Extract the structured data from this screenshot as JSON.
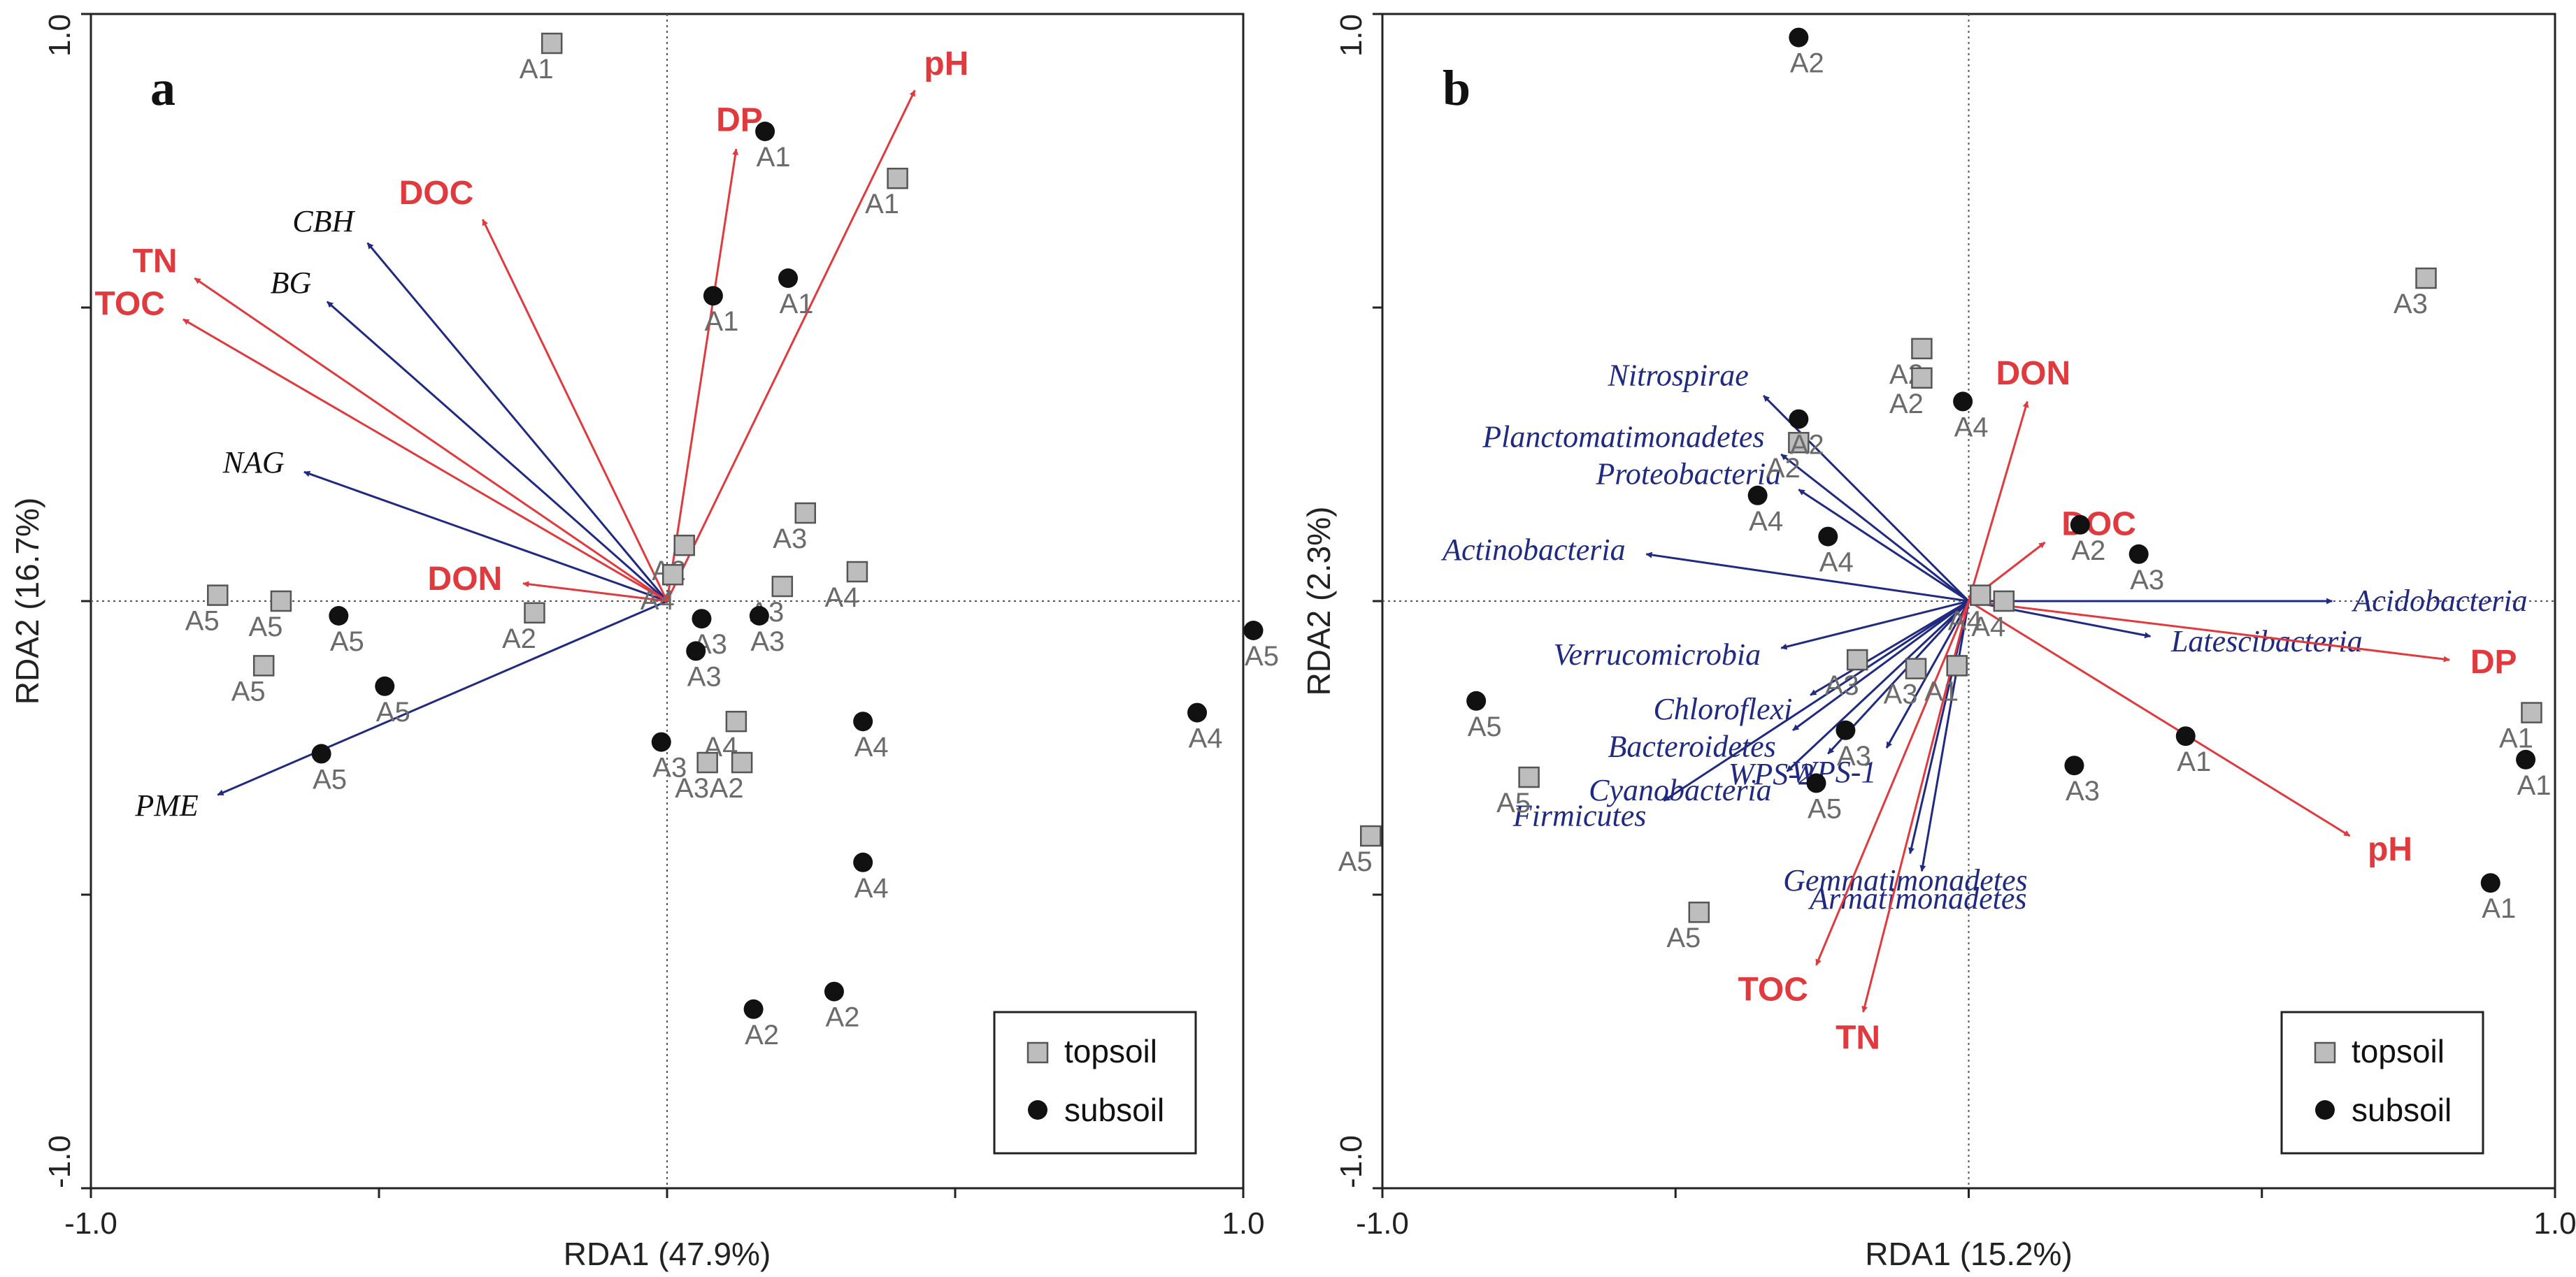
{
  "colors": {
    "env": "#e03a3e",
    "resp_a": "#1f2a80",
    "resp_b": "#1f2a80",
    "topsoil_fill": "#bdbdbd",
    "subsoil_fill": "#111111"
  },
  "chart_data": [
    {
      "type": "scatter",
      "panel": "a",
      "xlabel": "RDA1 (47.9%)",
      "ylabel": "RDA2 (16.7%)",
      "xlim": [
        -1.0,
        1.0
      ],
      "ylim": [
        -1.0,
        1.0
      ],
      "x_tick_labels": [
        "-1.0",
        "1.0"
      ],
      "y_tick_labels": [
        "1.0",
        "-1.0"
      ],
      "legend": {
        "position": "bottom-right",
        "items": [
          "topsoil",
          "subsoil"
        ]
      },
      "env_arrows": [
        {
          "label": "pH",
          "x": 0.43,
          "y": 0.87
        },
        {
          "label": "DP",
          "x": 0.12,
          "y": 0.77
        },
        {
          "label": "DOC",
          "x": -0.32,
          "y": 0.65
        },
        {
          "label": "TN",
          "x": -0.82,
          "y": 0.55
        },
        {
          "label": "TOC",
          "x": -0.84,
          "y": 0.48
        },
        {
          "label": "DON",
          "x": -0.25,
          "y": 0.03
        }
      ],
      "response_arrows": [
        {
          "label": "CBH",
          "x": -0.52,
          "y": 0.61
        },
        {
          "label": "BG",
          "x": -0.59,
          "y": 0.51
        },
        {
          "label": "NAG",
          "x": -0.63,
          "y": 0.22
        },
        {
          "label": "PME",
          "x": -0.78,
          "y": -0.33
        }
      ],
      "topsoil": [
        {
          "label": "A1",
          "x": -0.2,
          "y": 0.95
        },
        {
          "label": "A1",
          "x": 0.4,
          "y": 0.72
        },
        {
          "label": "A3",
          "x": 0.24,
          "y": 0.15
        },
        {
          "label": "A4",
          "x": 0.33,
          "y": 0.05
        },
        {
          "label": "A3",
          "x": 0.2,
          "y": 0.025
        },
        {
          "label": "A2",
          "x": 0.03,
          "y": 0.095
        },
        {
          "label": "A4",
          "x": 0.01,
          "y": 0.045
        },
        {
          "label": "A2",
          "x": -0.23,
          "y": -0.02
        },
        {
          "label": "A5",
          "x": -0.78,
          "y": 0.01
        },
        {
          "label": "A5",
          "x": -0.67,
          "y": 0.0
        },
        {
          "label": "A5",
          "x": -0.7,
          "y": -0.11
        },
        {
          "label": "A4",
          "x": 0.12,
          "y": -0.205
        },
        {
          "label": "A3",
          "x": 0.07,
          "y": -0.275
        },
        {
          "label": "A2",
          "x": 0.13,
          "y": -0.275
        }
      ],
      "subsoil": [
        {
          "label": "A1",
          "x": 0.17,
          "y": 0.8
        },
        {
          "label": "A1",
          "x": 0.21,
          "y": 0.55
        },
        {
          "label": "A1",
          "x": 0.08,
          "y": 0.52
        },
        {
          "label": "A5",
          "x": -0.57,
          "y": -0.025
        },
        {
          "label": "A5",
          "x": -0.49,
          "y": -0.145
        },
        {
          "label": "A5",
          "x": -0.6,
          "y": -0.26
        },
        {
          "label": "A3",
          "x": 0.06,
          "y": -0.03
        },
        {
          "label": "A3",
          "x": 0.16,
          "y": -0.025
        },
        {
          "label": "A3",
          "x": 0.05,
          "y": -0.085
        },
        {
          "label": "A3",
          "x": -0.01,
          "y": -0.24
        },
        {
          "label": "A4",
          "x": 0.34,
          "y": -0.205
        },
        {
          "label": "A4",
          "x": 0.92,
          "y": -0.19
        },
        {
          "label": "A4",
          "x": 0.34,
          "y": -0.445
        },
        {
          "label": "A2",
          "x": 0.15,
          "y": -0.695
        },
        {
          "label": "A2",
          "x": 0.29,
          "y": -0.665
        }
      ]
    },
    {
      "type": "scatter",
      "panel": "b",
      "xlabel": "RDA1 (15.2%)",
      "ylabel": "RDA2 (2.3%)",
      "xlim": [
        -1.0,
        1.0
      ],
      "ylim": [
        -1.0,
        1.0
      ],
      "x_tick_labels": [
        "-1.0",
        "1.0"
      ],
      "y_tick_labels": [
        "1.0",
        "-1.0"
      ],
      "legend": {
        "position": "bottom-right",
        "items": [
          "topsoil",
          "subsoil"
        ]
      },
      "env_arrows": [
        {
          "label": "DON",
          "x": 0.1,
          "y": 0.34
        },
        {
          "label": "DOC",
          "x": 0.13,
          "y": 0.1
        },
        {
          "label": "DP",
          "x": 0.82,
          "y": -0.1
        },
        {
          "label": "pH",
          "x": 0.65,
          "y": -0.4
        },
        {
          "label": "TOC",
          "x": -0.26,
          "y": -0.62
        },
        {
          "label": "TN",
          "x": -0.18,
          "y": -0.7
        }
      ],
      "response_arrows": [
        {
          "label": "Nitrospirae",
          "x": -0.35,
          "y": 0.35
        },
        {
          "label": "Planctomatimonadetes",
          "x": -0.32,
          "y": 0.25
        },
        {
          "label": "Proteobacteria",
          "x": -0.29,
          "y": 0.19
        },
        {
          "label": "Actinobacteria",
          "x": -0.55,
          "y": 0.08
        },
        {
          "label": "Acidobacteria",
          "x": 0.62,
          "y": 0.0
        },
        {
          "label": "Latescibacteria",
          "x": 0.31,
          "y": -0.06
        },
        {
          "label": "Verrucomicrobia",
          "x": -0.32,
          "y": -0.08
        },
        {
          "label": "Chloroflexi",
          "x": -0.27,
          "y": -0.16
        },
        {
          "label": "Bacteroidetes",
          "x": -0.3,
          "y": -0.22
        },
        {
          "label": "WPS-2",
          "x": -0.24,
          "y": -0.26
        },
        {
          "label": "WPS-1",
          "x": -0.14,
          "y": -0.25
        },
        {
          "label": "Cyanobacteria",
          "x": -0.31,
          "y": -0.29
        },
        {
          "label": "Firmicutes",
          "x": -0.52,
          "y": -0.34
        },
        {
          "label": "Gemmatimonadetes",
          "x": -0.1,
          "y": -0.43
        },
        {
          "label": "Armatimonadetes",
          "x": -0.08,
          "y": -0.46
        }
      ],
      "topsoil": [
        {
          "label": "A3",
          "x": 0.78,
          "y": 0.55
        },
        {
          "label": "A2",
          "x": -0.08,
          "y": 0.43
        },
        {
          "label": "A2",
          "x": -0.08,
          "y": 0.38
        },
        {
          "label": "A2",
          "x": -0.29,
          "y": 0.27
        },
        {
          "label": "A4",
          "x": 0.02,
          "y": 0.01
        },
        {
          "label": "A4",
          "x": 0.06,
          "y": 0.0
        },
        {
          "label": "A1",
          "x": -0.02,
          "y": -0.11
        },
        {
          "label": "A3",
          "x": -0.19,
          "y": -0.1
        },
        {
          "label": "A3",
          "x": -0.09,
          "y": -0.115
        },
        {
          "label": "A1",
          "x": 0.96,
          "y": -0.19
        },
        {
          "label": "A5",
          "x": -0.75,
          "y": -0.3
        },
        {
          "label": "A5",
          "x": -1.02,
          "y": -0.4
        },
        {
          "label": "A5",
          "x": -0.46,
          "y": -0.53
        }
      ],
      "subsoil": [
        {
          "label": "A2",
          "x": -0.29,
          "y": 0.96
        },
        {
          "label": "A2",
          "x": -0.29,
          "y": 0.31
        },
        {
          "label": "A4",
          "x": -0.01,
          "y": 0.34
        },
        {
          "label": "A4",
          "x": -0.36,
          "y": 0.18
        },
        {
          "label": "A4",
          "x": -0.24,
          "y": 0.11
        },
        {
          "label": "A2",
          "x": 0.19,
          "y": 0.13
        },
        {
          "label": "A3",
          "x": 0.29,
          "y": 0.08
        },
        {
          "label": "A5",
          "x": -1.22,
          "y": -0.05
        },
        {
          "label": "A5",
          "x": -0.84,
          "y": -0.17
        },
        {
          "label": "A3",
          "x": -0.21,
          "y": -0.22
        },
        {
          "label": "A5",
          "x": -0.26,
          "y": -0.31
        },
        {
          "label": "A3",
          "x": 0.18,
          "y": -0.28
        },
        {
          "label": "A1",
          "x": 0.37,
          "y": -0.23
        },
        {
          "label": "A1",
          "x": 0.95,
          "y": -0.27
        },
        {
          "label": "A1",
          "x": 0.89,
          "y": -0.48
        }
      ]
    }
  ]
}
